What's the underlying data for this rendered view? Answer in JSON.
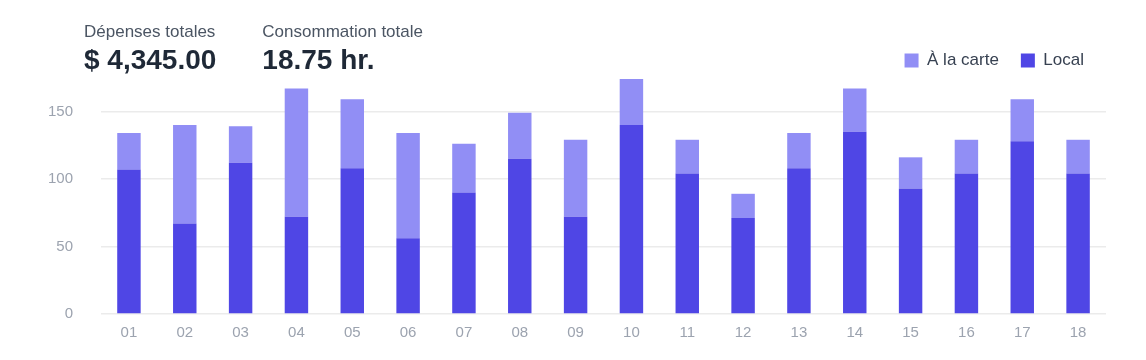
{
  "chart_data": {
    "type": "bar",
    "stacked": true,
    "annotations": [
      "Dépenses totales",
      "$ 4,345.00",
      "Consommation totale",
      "18.75 hr."
    ],
    "categories": [
      "01",
      "02",
      "03",
      "04",
      "05",
      "06",
      "07",
      "08",
      "09",
      "10",
      "11",
      "12",
      "13",
      "14",
      "15",
      "16",
      "17",
      "18"
    ],
    "series": [
      {
        "name": "Local",
        "color": "#4f46e5",
        "values": [
          107,
          67,
          112,
          72,
          108,
          56,
          90,
          115,
          72,
          140,
          104,
          71,
          108,
          135,
          93,
          104,
          128,
          104
        ]
      },
      {
        "name": "À la carte",
        "color": "#918ef5",
        "values": [
          27,
          73,
          27,
          95,
          51,
          78,
          36,
          34,
          57,
          34,
          25,
          18,
          26,
          32,
          23,
          25,
          31,
          25
        ]
      }
    ],
    "ylim": [
      0,
      174
    ],
    "yticks": [
      0,
      50,
      100,
      150
    ],
    "grid": "y",
    "legend": "top right"
  }
}
